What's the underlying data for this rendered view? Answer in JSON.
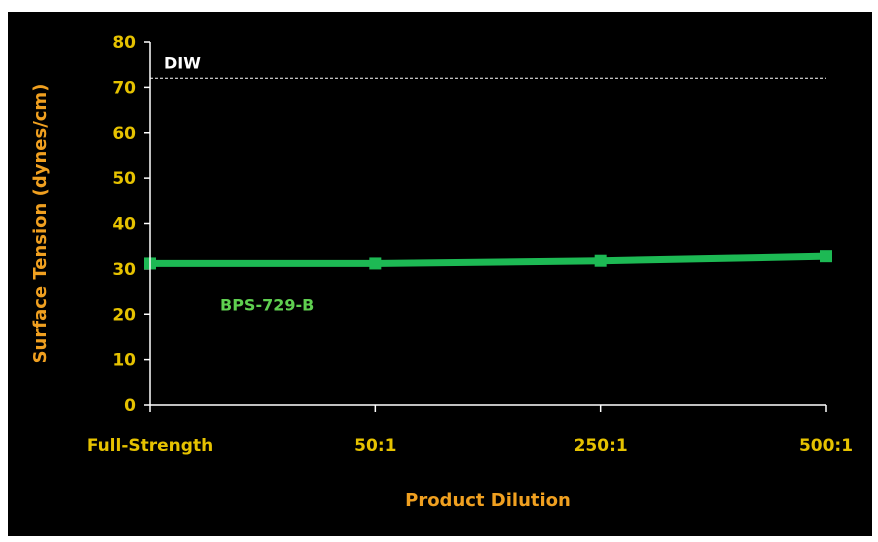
{
  "colors": {
    "background": "#000000",
    "axis_text": "#e6c200",
    "axis_title": "#f0a020",
    "series": "#1db954",
    "series_label": "#5fcf50",
    "reference_line": "#ffffff",
    "axis_line": "#ffffff"
  },
  "chart_data": {
    "type": "line",
    "title": "",
    "xlabel": "Product Dilution",
    "ylabel": "Surface Tension (dynes/cm)",
    "categories": [
      "Full-Strength",
      "50:1",
      "250:1",
      "500:1"
    ],
    "y_ticks": [
      0,
      10,
      20,
      30,
      40,
      50,
      60,
      70,
      80
    ],
    "ylim": [
      0,
      80
    ],
    "grid": false,
    "legend": "none",
    "series": [
      {
        "name": "BPS-729-B",
        "values": [
          31.2,
          31.2,
          31.8,
          32.8
        ]
      }
    ],
    "reference_lines": [
      {
        "label": "DIW",
        "value": 72,
        "style": "dashed"
      }
    ]
  }
}
